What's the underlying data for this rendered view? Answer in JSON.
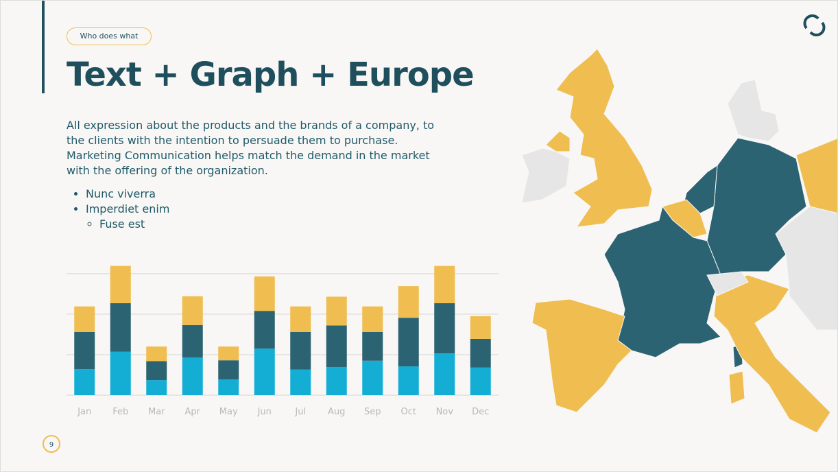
{
  "header": {
    "tag": "Who does what",
    "title": "Text + Graph + Europe"
  },
  "body": {
    "paragraph": "All expression about the products and the brands of a company, to the clients with the intention to persuade them to purchase. Marketing Communication helps match the demand in the market with the offering of the organization.",
    "bullets": [
      "Nunc viverra",
      "Imperdiet enim"
    ],
    "subbullets": [
      "Fuse est"
    ]
  },
  "page_number": "9",
  "chart_data": {
    "type": "bar",
    "stacked": true,
    "categories": [
      "Jan",
      "Feb",
      "Mar",
      "Apr",
      "May",
      "Jun",
      "Jul",
      "Aug",
      "Sep",
      "Oct",
      "Nov",
      "Dec"
    ],
    "series": [
      {
        "color": "#14aed5",
        "values": [
          0.64,
          1.07,
          0.37,
          0.93,
          0.39,
          1.15,
          0.63,
          0.69,
          0.85,
          0.71,
          1.03,
          0.68
        ]
      },
      {
        "color": "#2c6373",
        "values": [
          0.92,
          1.2,
          0.47,
          0.8,
          0.47,
          0.93,
          0.93,
          1.03,
          0.71,
          1.2,
          1.24,
          0.71
        ]
      },
      {
        "color": "#f0bd50",
        "values": [
          0.63,
          0.92,
          0.36,
          0.71,
          0.34,
          0.85,
          0.63,
          0.71,
          0.63,
          0.78,
          0.92,
          0.56
        ]
      }
    ],
    "ylim": [
      0,
      3.2
    ],
    "yticks": [
      0,
      1,
      2,
      3
    ],
    "grid": true
  }
}
